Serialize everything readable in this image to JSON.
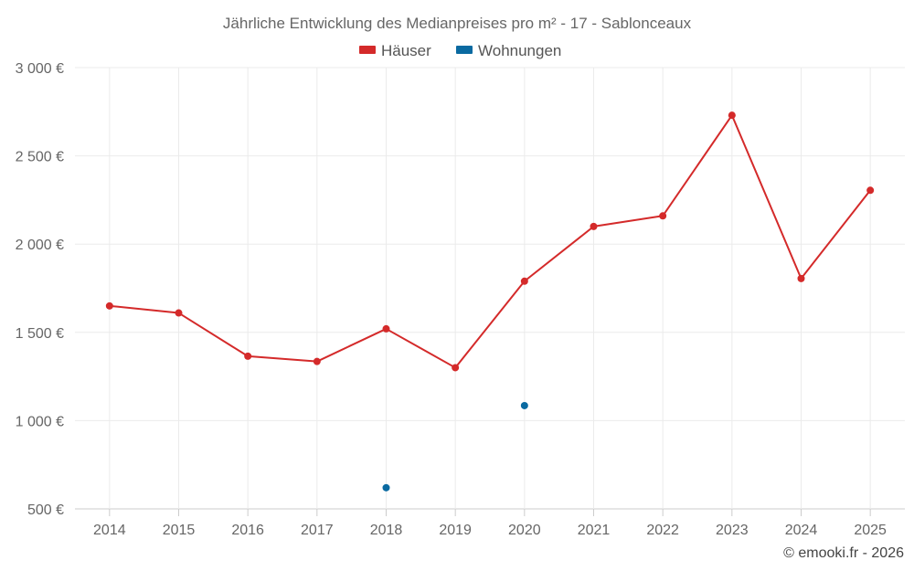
{
  "chart_data": {
    "type": "line",
    "title": "Jährliche Entwicklung des Medianpreises pro m² - 17 - Sablonceaux",
    "categories": [
      "2014",
      "2015",
      "2016",
      "2017",
      "2018",
      "2019",
      "2020",
      "2021",
      "2022",
      "2023",
      "2024",
      "2025"
    ],
    "series": [
      {
        "name": "Häuser",
        "color": "#d42a2a",
        "values": [
          1650,
          1610,
          1365,
          1335,
          1520,
          1300,
          1790,
          2100,
          2160,
          2730,
          1805,
          2305
        ]
      },
      {
        "name": "Wohnungen",
        "color": "#0a6aa1",
        "values": [
          null,
          null,
          null,
          null,
          620,
          null,
          1085,
          null,
          null,
          null,
          null,
          null
        ]
      }
    ],
    "ylim": [
      500,
      3000
    ],
    "yticks": [
      500,
      1000,
      1500,
      2000,
      2500,
      3000
    ],
    "ytick_labels": [
      "500 €",
      "1 000 €",
      "1 500 €",
      "2 000 €",
      "2 500 €",
      "3 000 €"
    ],
    "xlabel": "",
    "ylabel": "",
    "grid": true,
    "legend_position": "top-center"
  },
  "credit": "© emooki.fr - 2026"
}
